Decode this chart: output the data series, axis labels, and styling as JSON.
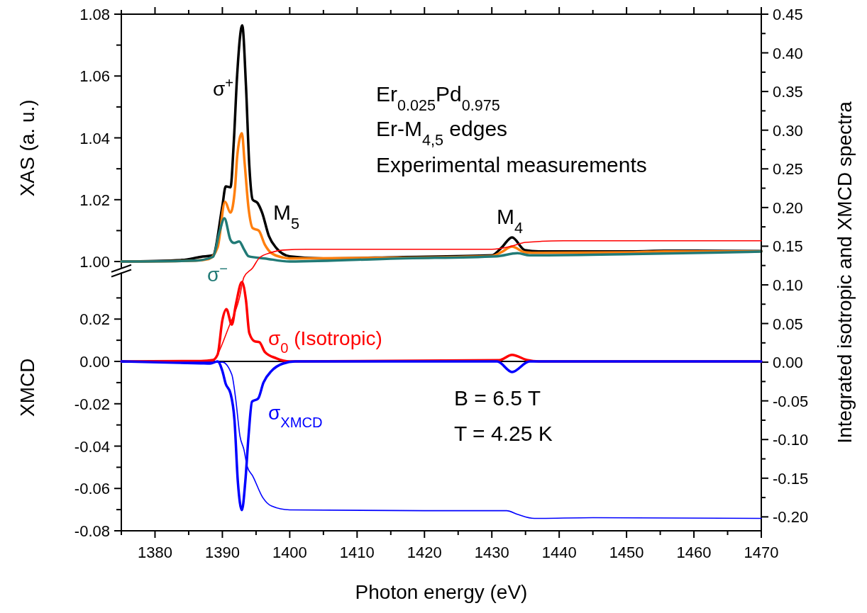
{
  "chart_data": [
    {
      "type": "line",
      "ylabel": "XAS (a. u.)",
      "tick_labels": "y",
      "xlim": [
        1375,
        1470
      ],
      "xticks": [
        1380,
        1390,
        1400,
        1410,
        1420,
        1430,
        1440,
        1450,
        1460,
        1470
      ],
      "ylim": [
        0.998,
        1.08
      ],
      "yticks": [
        {
          "value": 1,
          "label": "1.00"
        },
        {
          "value": 1.02,
          "label": "1.02"
        },
        {
          "value": 1.04,
          "label": "1.04"
        },
        {
          "value": 1.06,
          "label": "1.06"
        },
        {
          "value": 1.08,
          "label": "1.08"
        }
      ],
      "annotations": [
        "Er$_{0.025}$Pd$_{0.975}$",
        "Er-M$_{4,5}$ edges",
        "Experimental measurements",
        "M$_{5}$",
        "M$_{4}$"
      ],
      "series": [
        {
          "name": "σ$^{+}$",
          "color": "#000000",
          "x": [
            1375,
            1384,
            1386.8,
            1388.6,
            1390,
            1390.5,
            1391.2,
            1391.7,
            1392.2,
            1392.95,
            1393.5,
            1394,
            1394.5,
            1395.2,
            1395.9,
            1396.9,
            1398,
            1400,
            1405,
            1416,
            1430,
            1431.4,
            1433,
            1434.9,
            1437,
            1451,
            1455.6,
            1470
          ],
          "values": [
            1.0,
            1.0005,
            1.0015,
            1.002,
            1.018,
            1.0243,
            1.024,
            1.0388,
            1.0605,
            1.0764,
            1.057,
            1.031,
            1.02,
            1.019,
            1.0158,
            1.0083,
            1.0044,
            1.0017,
            1.001,
            1.0014,
            1.002,
            1.0044,
            1.0078,
            1.0037,
            1.0033,
            1.0033,
            1.0035,
            1.0034
          ]
        },
        {
          "color": "#ff7f0e",
          "x": [
            1375,
            1386,
            1388,
            1389.3,
            1390.4,
            1391.2,
            1391.9,
            1392.2,
            1392.9,
            1393.3,
            1393.9,
            1394.5,
            1395.4,
            1396.3,
            1397.3,
            1399,
            1400,
            1416,
            1430,
            1431.4,
            1433,
            1434.9,
            1437,
            1451,
            1455.6,
            1470
          ],
          "values": [
            1.0,
            1.0003,
            1.0008,
            1.0046,
            1.0193,
            1.0158,
            1.0243,
            1.034,
            1.0415,
            1.032,
            1.017,
            1.0108,
            1.01,
            1.0055,
            1.0027,
            1.0013,
            1.001,
            1.0012,
            1.0018,
            1.003,
            1.0048,
            1.003,
            1.0028,
            1.003,
            1.0033,
            1.0033
          ]
        },
        {
          "name": "σ$^{−}$",
          "color": "#217a76",
          "x": [
            1375,
            1386,
            1388.6,
            1389.6,
            1390.3,
            1391.2,
            1391.7,
            1392.5,
            1393.2,
            1393.9,
            1396.3,
            1400,
            1416,
            1430.7,
            1433.8,
            1435.6,
            1451,
            1470
          ],
          "values": [
            1.0,
            1.0003,
            1.0015,
            1.0098,
            1.014,
            1.007,
            1.006,
            1.0065,
            1.004,
            1.0017,
            1.001,
            1.0,
            1.001,
            1.0017,
            1.0027,
            1.002,
            1.0024,
            1.0032
          ]
        }
      ]
    },
    {
      "type": "line",
      "xlabel": "Photon energy (eV)",
      "ylabel": "XMCD",
      "y2label": "Integrated isotropic and XMCD spectra",
      "xlim": [
        1375,
        1470
      ],
      "xticks": [
        1380,
        1390,
        1400,
        1410,
        1420,
        1430,
        1440,
        1450,
        1460,
        1470
      ],
      "ylim": [
        -0.08,
        0.042
      ],
      "yticks": [
        {
          "value": -0.08,
          "label": "-0.08"
        },
        {
          "value": -0.06,
          "label": "-0.06"
        },
        {
          "value": -0.04,
          "label": "-0.04"
        },
        {
          "value": -0.02,
          "label": "-0.02"
        },
        {
          "value": 0,
          "label": "0.00"
        },
        {
          "value": 0.02,
          "label": "0.02"
        }
      ],
      "y2lim": [
        -0.218,
        0.45
      ],
      "y2ticks": [
        {
          "value": -0.2,
          "label": "-0.20"
        },
        {
          "value": -0.15,
          "label": "-0.15"
        },
        {
          "value": -0.1,
          "label": "-0.10"
        },
        {
          "value": -0.05,
          "label": "-0.05"
        },
        {
          "value": 0,
          "label": "0.00"
        },
        {
          "value": 0.05,
          "label": "0.05"
        },
        {
          "value": 0.1,
          "label": "0.10"
        },
        {
          "value": 0.15,
          "label": "0.15"
        },
        {
          "value": 0.2,
          "label": "0.20"
        },
        {
          "value": 0.25,
          "label": "0.25"
        },
        {
          "value": 0.3,
          "label": "0.30"
        },
        {
          "value": 0.35,
          "label": "0.35"
        },
        {
          "value": 0.4,
          "label": "0.40"
        },
        {
          "value": 0.45,
          "label": "0.45"
        }
      ],
      "ref_lines": [
        {
          "axis": "y",
          "value": 0,
          "color": "#000000"
        }
      ],
      "annotations": [
        "B = 6.5 T",
        "T = 4.25 K"
      ],
      "series": [
        {
          "name": "σ$_{0}$ (Isotropic)",
          "color": "#ff0000",
          "x": [
            1375,
            1386.8,
            1388.6,
            1389.3,
            1390,
            1390.6,
            1391.4,
            1392,
            1392.9,
            1393.5,
            1394,
            1394.8,
            1395.5,
            1396.3,
            1398,
            1400,
            1431.1,
            1433,
            1435.2,
            1437,
            1470
          ],
          "values": [
            0,
            0.0002,
            0.0007,
            0.0033,
            0.0195,
            0.0247,
            0.0174,
            0.0268,
            0.0375,
            0.029,
            0.0134,
            0.0095,
            0.0091,
            0.0045,
            0.0015,
            0,
            0.0006,
            0.0031,
            0.0007,
            0,
            0
          ]
        },
        {
          "name": "σ$_{XMCD}$",
          "color": "#0000ff",
          "x": [
            1375,
            1386.8,
            1388.2,
            1389.3,
            1390,
            1390.5,
            1391.2,
            1391.8,
            1392.3,
            1392.9,
            1393.4,
            1393.9,
            1394.4,
            1395.3,
            1396.1,
            1397.3,
            1399,
            1400.8,
            1430.8,
            1433,
            1435.6,
            1470
          ],
          "values": [
            0,
            -0.0009,
            -0.001,
            0,
            -0.0045,
            -0.0106,
            -0.015,
            -0.0278,
            -0.0569,
            -0.0702,
            -0.0569,
            -0.0346,
            -0.019,
            -0.0176,
            -0.01,
            -0.0045,
            -0.001,
            0,
            0,
            -0.005,
            0,
            0
          ]
        },
        {
          "color": "#ff0000",
          "axis": "y2",
          "x": [
            1375,
            1388.2,
            1391.1,
            1392.5,
            1393.2,
            1394.5,
            1395.5,
            1397.3,
            1399,
            1402.5,
            1430,
            1432.9,
            1435,
            1440.6,
            1470
          ],
          "values": [
            0,
            0,
            0.0486,
            0.082,
            0.11,
            0.122,
            0.135,
            0.142,
            0.145,
            0.146,
            0.146,
            0.15,
            0.155,
            0.157,
            0.157
          ]
        },
        {
          "color": "#0000ff",
          "axis": "y2",
          "x": [
            1375,
            1390,
            1391.4,
            1392,
            1392.6,
            1393.2,
            1393.7,
            1394.5,
            1396,
            1397.3,
            1400,
            1420,
            1432.2,
            1433.9,
            1436.3,
            1445,
            1470
          ],
          "values": [
            0,
            0,
            -0.016,
            -0.049,
            -0.095,
            -0.113,
            -0.135,
            -0.147,
            -0.175,
            -0.186,
            -0.191,
            -0.192,
            -0.192,
            -0.197,
            -0.202,
            -0.201,
            -0.202
          ]
        }
      ]
    }
  ]
}
